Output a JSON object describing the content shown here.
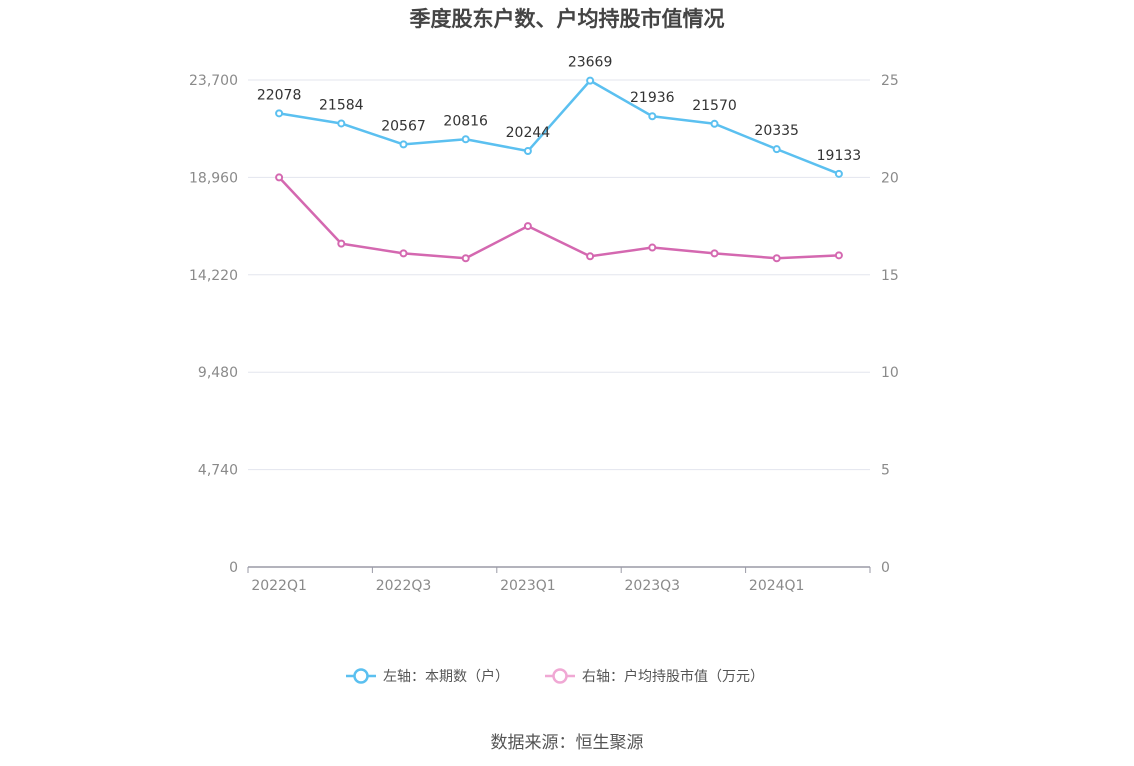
{
  "chart_data": {
    "type": "line",
    "title": "季度股东户数、户均持股市值情况",
    "categories": [
      "2022Q1",
      "2022Q2",
      "2022Q3",
      "2022Q4",
      "2023Q1",
      "2023Q2",
      "2023Q3",
      "2023Q4",
      "2024Q1",
      "2024Q2"
    ],
    "x_tick_labels": [
      "2022Q1",
      "2022Q3",
      "2023Q1",
      "2023Q3",
      "2024Q1"
    ],
    "left_axis": {
      "ylim": [
        0,
        23700
      ],
      "ticks": [
        "0",
        "4,740",
        "9,480",
        "14,220",
        "18,960",
        "23,700"
      ]
    },
    "right_axis": {
      "ylim": [
        0,
        25
      ],
      "ticks": [
        "0",
        "5",
        "10",
        "15",
        "20",
        "25"
      ]
    },
    "series": [
      {
        "name": "左轴：本期数（户）",
        "axis": "left",
        "color": "#5bc0f0",
        "values": [
          22078,
          21584,
          20567,
          20816,
          20244,
          23669,
          21936,
          21570,
          20335,
          19133
        ],
        "show_labels": true
      },
      {
        "name": "右轴：户均持股市值（万元）",
        "axis": "right",
        "color": "#d468b0",
        "legend_color": "#f0a8d4",
        "values": [
          20.0,
          16.6,
          16.1,
          15.85,
          17.5,
          15.95,
          16.4,
          16.1,
          15.85,
          16.0
        ],
        "show_labels": false
      }
    ],
    "grid": true,
    "legend_position": "bottom-center"
  },
  "source": "数据来源：恒生聚源"
}
